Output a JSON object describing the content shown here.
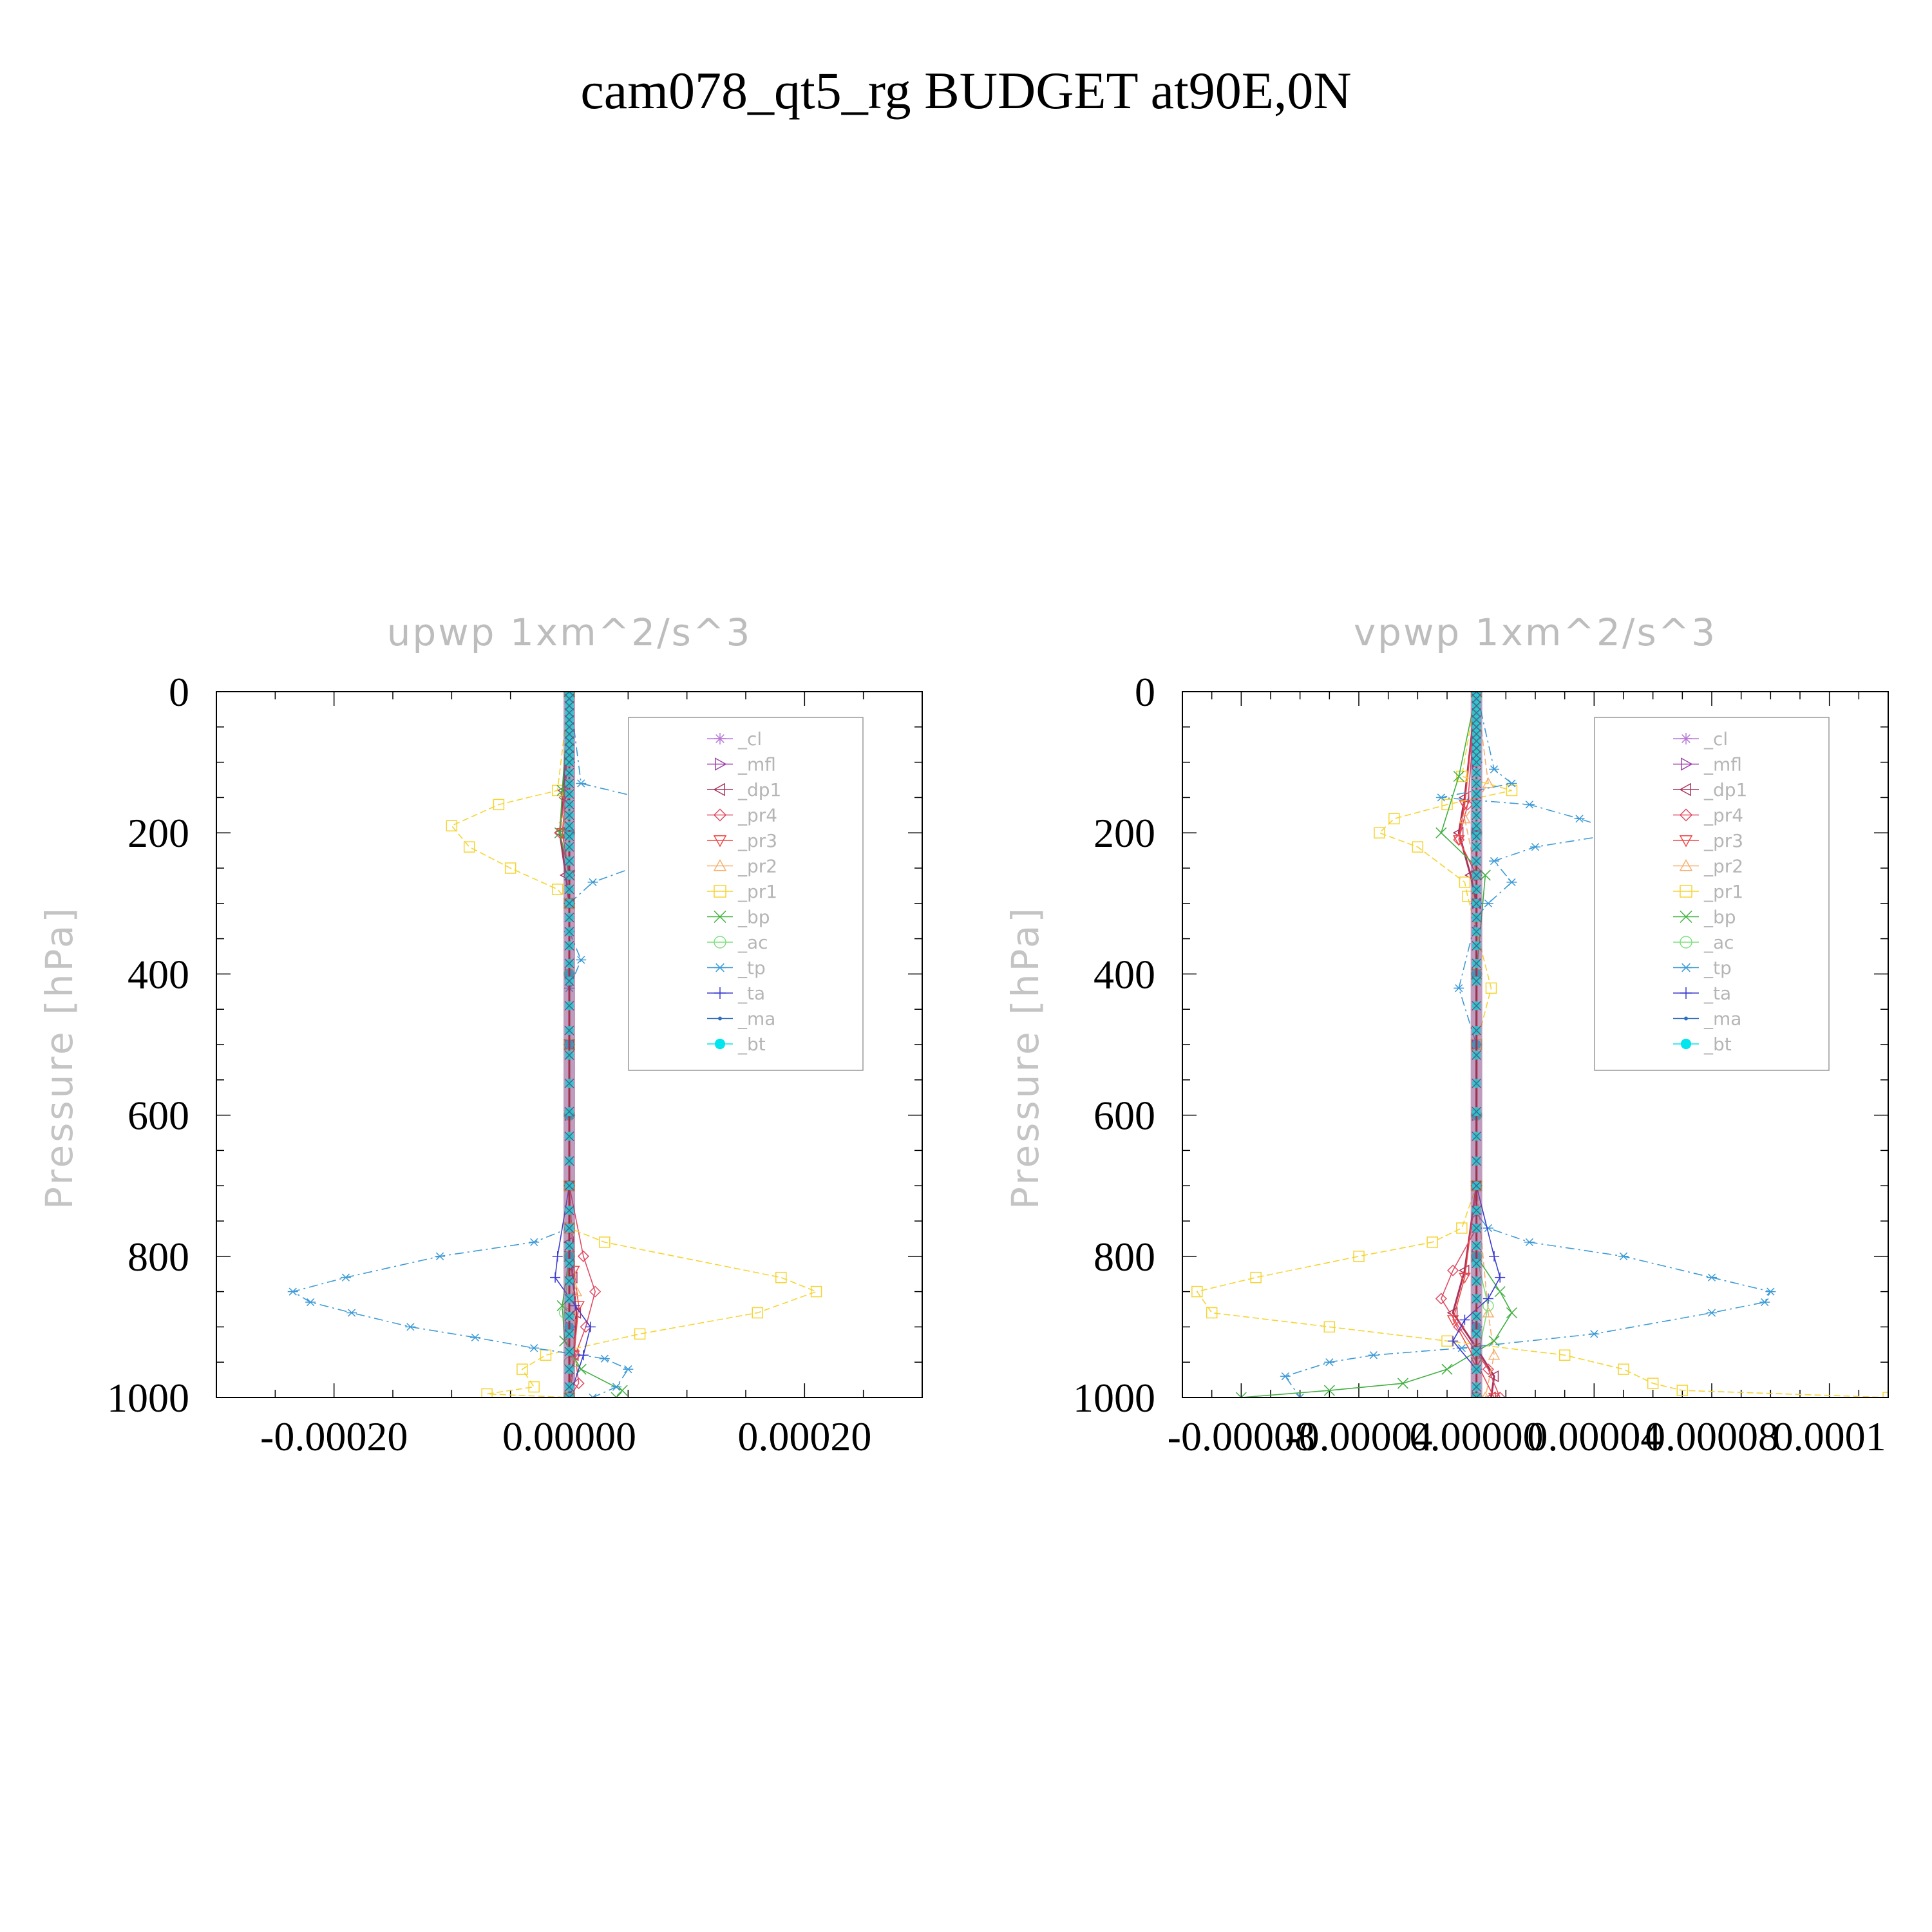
{
  "figure_title": "cam078_qt5_rg  BUDGET at90E,0N",
  "chart_data": [
    {
      "type": "line",
      "title": "upwp    1xm^2/s^3",
      "ylabel": "Pressure  [hPa]",
      "xlabel": "",
      "xlim": [
        -0.0003,
        0.0003
      ],
      "ylim": [
        1000,
        0
      ],
      "y_ticks": [
        "0",
        "200",
        "400",
        "600",
        "800",
        "1000"
      ],
      "x_ticks": [
        "-0.00020",
        "0.00000",
        "0.00020"
      ],
      "legend_position": "top-right",
      "series": [
        {
          "name": "_cl",
          "color": "#b878d8",
          "marker": "star",
          "x": [
            0,
            0,
            0,
            0,
            0,
            0,
            0,
            0,
            0,
            0,
            0
          ],
          "y": [
            0,
            100,
            200,
            300,
            400,
            500,
            600,
            700,
            800,
            900,
            1000
          ]
        },
        {
          "name": "_mfl",
          "color": "#9b3ea8",
          "marker": "tri-right",
          "x": [
            0,
            0,
            0,
            0,
            0,
            0,
            0,
            0,
            0,
            0,
            0
          ],
          "y": [
            0,
            100,
            200,
            300,
            400,
            500,
            600,
            700,
            800,
            900,
            1000
          ]
        },
        {
          "name": "_dp1",
          "color": "#a8345a",
          "marker": "tri-left",
          "x": [
            0,
            -5e-06,
            -8e-06,
            -3e-06,
            0,
            0,
            0,
            0,
            3e-06,
            6e-06,
            4e-06,
            0
          ],
          "y": [
            0,
            140,
            200,
            260,
            300,
            500,
            700,
            780,
            830,
            880,
            940,
            1000
          ]
        },
        {
          "name": "_pr4",
          "color": "#e04c64",
          "marker": "diamond",
          "x": [
            0,
            -4e-06,
            -8e-06,
            0,
            0,
            0,
            1.2e-05,
            2.2e-05,
            1.4e-05,
            5e-06,
            8e-06,
            0
          ],
          "y": [
            0,
            150,
            200,
            260,
            400,
            700,
            800,
            850,
            900,
            940,
            980,
            1000
          ]
        },
        {
          "name": "_pr3",
          "color": "#f04646",
          "marker": "tri-down",
          "x": [
            0,
            -3e-06,
            -6e-06,
            0,
            0,
            4e-06,
            8e-06,
            4e-06,
            0
          ],
          "y": [
            0,
            150,
            200,
            260,
            700,
            820,
            870,
            940,
            1000
          ]
        },
        {
          "name": "_pr2",
          "color": "#f5b070",
          "marker": "tri-up",
          "x": [
            0,
            -4e-06,
            0,
            0,
            6e-06,
            3e-06,
            0
          ],
          "y": [
            0,
            180,
            300,
            700,
            850,
            950,
            1000
          ]
        },
        {
          "name": "_pr1",
          "color": "#f5d432",
          "marker": "square",
          "x": [
            0,
            -1e-05,
            -6e-05,
            -0.0001,
            -8.5e-05,
            -5e-05,
            -1e-05,
            0,
            0,
            0,
            0,
            3e-05,
            0.00018,
            0.00021,
            0.00016,
            6e-05,
            -2e-05,
            -4e-05,
            -3e-05,
            -7e-05,
            0
          ],
          "y": [
            0,
            140,
            160,
            190,
            220,
            250,
            280,
            300,
            500,
            700,
            760,
            780,
            830,
            850,
            880,
            910,
            940,
            960,
            985,
            995,
            1000
          ]
        },
        {
          "name": "_bp",
          "color": "#40b040",
          "marker": "x",
          "x": [
            0,
            -6e-06,
            -8e-06,
            0,
            0,
            0,
            -6e-06,
            -4e-06,
            1e-05,
            4.5e-05,
            4e-05
          ],
          "y": [
            0,
            140,
            200,
            260,
            500,
            800,
            870,
            920,
            960,
            990,
            1000
          ]
        },
        {
          "name": "_ac",
          "color": "#80e080",
          "marker": "circle",
          "x": [
            0,
            0,
            0,
            0,
            0,
            -4e-06,
            0,
            0
          ],
          "y": [
            0,
            200,
            400,
            600,
            800,
            880,
            950,
            1000
          ]
        },
        {
          "name": "_tp",
          "color": "#3c9ad6",
          "marker": "asterisk",
          "x": [
            0,
            1e-05,
            6e-05,
            9e-05,
            0.00015,
            0.00011,
            7e-05,
            2e-05,
            0,
            0,
            1e-05,
            0,
            0,
            0,
            0,
            0,
            -3e-05,
            -0.00011,
            -0.00019,
            -0.000235,
            -0.00022,
            -0.000185,
            -0.000135,
            -8e-05,
            -3e-05,
            3e-05,
            5e-05,
            4e-05,
            2e-05
          ],
          "y": [
            0,
            130,
            150,
            170,
            190,
            210,
            240,
            270,
            300,
            340,
            380,
            420,
            500,
            600,
            700,
            760,
            780,
            800,
            830,
            850,
            865,
            880,
            900,
            915,
            930,
            945,
            960,
            985,
            1000
          ]
        },
        {
          "name": "_ta",
          "color": "#3a3ad0",
          "marker": "plus",
          "x": [
            0,
            0,
            0,
            -1e-05,
            -1.2e-05,
            5e-06,
            1.8e-05,
            1.2e-05,
            0
          ],
          "y": [
            0,
            300,
            700,
            800,
            830,
            870,
            900,
            940,
            1000
          ]
        },
        {
          "name": "_ma",
          "color": "#3070c0",
          "marker": "dot",
          "x": [
            0,
            0,
            0,
            0,
            0,
            0,
            0,
            0,
            0,
            0,
            0
          ],
          "y": [
            0,
            100,
            200,
            300,
            400,
            500,
            600,
            700,
            800,
            900,
            1000
          ]
        },
        {
          "name": "_bt",
          "color": "#00e5ee",
          "marker": "filled-circle",
          "x": [
            0,
            0,
            0,
            0,
            0,
            0,
            0,
            0,
            0,
            0,
            0
          ],
          "y": [
            0,
            100,
            200,
            300,
            400,
            500,
            600,
            700,
            800,
            900,
            1000
          ]
        }
      ]
    },
    {
      "type": "line",
      "title": "vpwp    1xm^2/s^3",
      "ylabel": "Pressure  [hPa]",
      "xlabel": "",
      "xlim": [
        -0.0001,
        0.00014
      ],
      "ylim": [
        1000,
        0
      ],
      "y_ticks": [
        "0",
        "200",
        "400",
        "600",
        "800",
        "1000"
      ],
      "x_ticks": [
        "-0.00008",
        "-0.00004",
        "0.00000",
        "0.00004",
        "0.00008",
        "0.0001"
      ],
      "legend_position": "top-right",
      "series": [
        {
          "name": "_cl",
          "color": "#b878d8",
          "marker": "star",
          "x": [
            0,
            0,
            0,
            0,
            0,
            0,
            0,
            0,
            0,
            0,
            0
          ],
          "y": [
            0,
            100,
            200,
            300,
            400,
            500,
            600,
            700,
            800,
            900,
            1000
          ]
        },
        {
          "name": "_mfl",
          "color": "#9b3ea8",
          "marker": "tri-right",
          "x": [
            0,
            0,
            0,
            0,
            0,
            0,
            0,
            0,
            0,
            0,
            0
          ],
          "y": [
            0,
            100,
            200,
            300,
            400,
            500,
            600,
            700,
            800,
            900,
            1000
          ]
        },
        {
          "name": "_dp1",
          "color": "#a8345a",
          "marker": "tri-left",
          "x": [
            0,
            -4e-06,
            -6e-06,
            -2e-06,
            0,
            0,
            -4e-06,
            -8e-06,
            0,
            6e-06,
            5e-06
          ],
          "y": [
            0,
            150,
            200,
            260,
            300,
            700,
            820,
            880,
            930,
            970,
            1000
          ]
        },
        {
          "name": "_pr4",
          "color": "#e04c64",
          "marker": "diamond",
          "x": [
            0,
            -3e-06,
            -6e-06,
            0,
            0,
            0,
            -8e-06,
            -1.2e-05,
            -6e-06,
            4e-06,
            8e-06
          ],
          "y": [
            0,
            160,
            210,
            260,
            400,
            760,
            820,
            860,
            900,
            960,
            1000
          ]
        },
        {
          "name": "_pr3",
          "color": "#f04646",
          "marker": "tri-down",
          "x": [
            0,
            -4e-06,
            -6e-06,
            0,
            0,
            -4e-06,
            -8e-06,
            0,
            6e-06
          ],
          "y": [
            0,
            160,
            210,
            260,
            700,
            830,
            890,
            950,
            1000
          ]
        },
        {
          "name": "_pr2",
          "color": "#f5b070",
          "marker": "tri-up",
          "x": [
            0,
            4e-06,
            -4e-06,
            0,
            0,
            4e-06,
            6e-06,
            3e-06
          ],
          "y": [
            0,
            130,
            180,
            260,
            700,
            880,
            940,
            1000
          ]
        },
        {
          "name": "_pr1",
          "color": "#f5d432",
          "marker": "square",
          "x": [
            0,
            -5e-06,
            1.2e-05,
            -1e-05,
            -2.8e-05,
            -3.3e-05,
            -2e-05,
            -4e-06,
            -3e-06,
            5e-06,
            0,
            0,
            -5e-06,
            -1.5e-05,
            -4e-05,
            -7.5e-05,
            -9.5e-05,
            -9e-05,
            -5e-05,
            -1e-05,
            3e-05,
            5e-05,
            6e-05,
            7e-05,
            0.00014
          ],
          "y": [
            0,
            120,
            140,
            160,
            180,
            200,
            220,
            270,
            290,
            420,
            500,
            700,
            760,
            780,
            800,
            830,
            850,
            880,
            900,
            920,
            940,
            960,
            980,
            990,
            1000
          ]
        },
        {
          "name": "_bp",
          "color": "#40b040",
          "marker": "x",
          "x": [
            0,
            -6e-06,
            -1.2e-05,
            3e-06,
            0,
            0,
            8e-06,
            1.2e-05,
            6e-06,
            -1e-05,
            -2.5e-05,
            -5e-05,
            -8e-05
          ],
          "y": [
            0,
            120,
            200,
            260,
            400,
            800,
            850,
            880,
            920,
            960,
            980,
            990,
            1000
          ]
        },
        {
          "name": "_ac",
          "color": "#80e080",
          "marker": "circle",
          "x": [
            0,
            0,
            0,
            0,
            0,
            4e-06,
            0,
            0
          ],
          "y": [
            0,
            200,
            400,
            600,
            800,
            870,
            950,
            1000
          ]
        },
        {
          "name": "_tp",
          "color": "#3c9ad6",
          "marker": "asterisk",
          "x": [
            0,
            6e-06,
            1.2e-05,
            -1.2e-05,
            1.8e-05,
            3.5e-05,
            5e-05,
            2e-05,
            6e-06,
            1.2e-05,
            4e-06,
            0,
            -6e-06,
            0,
            0,
            0,
            4e-06,
            1.8e-05,
            5e-05,
            8e-05,
            0.0001,
            9.8e-05,
            8e-05,
            4e-05,
            -5e-06,
            -3.5e-05,
            -5e-05,
            -6.5e-05,
            -6e-05
          ],
          "y": [
            0,
            110,
            130,
            150,
            160,
            180,
            200,
            220,
            240,
            270,
            300,
            320,
            420,
            500,
            700,
            740,
            760,
            780,
            800,
            830,
            850,
            865,
            880,
            910,
            930,
            940,
            950,
            970,
            1000
          ]
        },
        {
          "name": "_ta",
          "color": "#3a3ad0",
          "marker": "plus",
          "x": [
            0,
            0,
            0,
            6e-06,
            8e-06,
            4e-06,
            -4e-06,
            -8e-06,
            0,
            0
          ],
          "y": [
            0,
            300,
            700,
            800,
            830,
            860,
            890,
            920,
            960,
            1000
          ]
        },
        {
          "name": "_ma",
          "color": "#3070c0",
          "marker": "dot",
          "x": [
            0,
            0,
            0,
            0,
            0,
            0,
            0,
            0,
            0,
            0,
            0
          ],
          "y": [
            0,
            100,
            200,
            300,
            400,
            500,
            600,
            700,
            800,
            900,
            1000
          ]
        },
        {
          "name": "_bt",
          "color": "#00e5ee",
          "marker": "filled-circle",
          "x": [
            0,
            0,
            0,
            0,
            0,
            0,
            0,
            0,
            0,
            0,
            0
          ],
          "y": [
            0,
            100,
            200,
            300,
            400,
            500,
            600,
            700,
            800,
            900,
            1000
          ]
        }
      ]
    }
  ]
}
